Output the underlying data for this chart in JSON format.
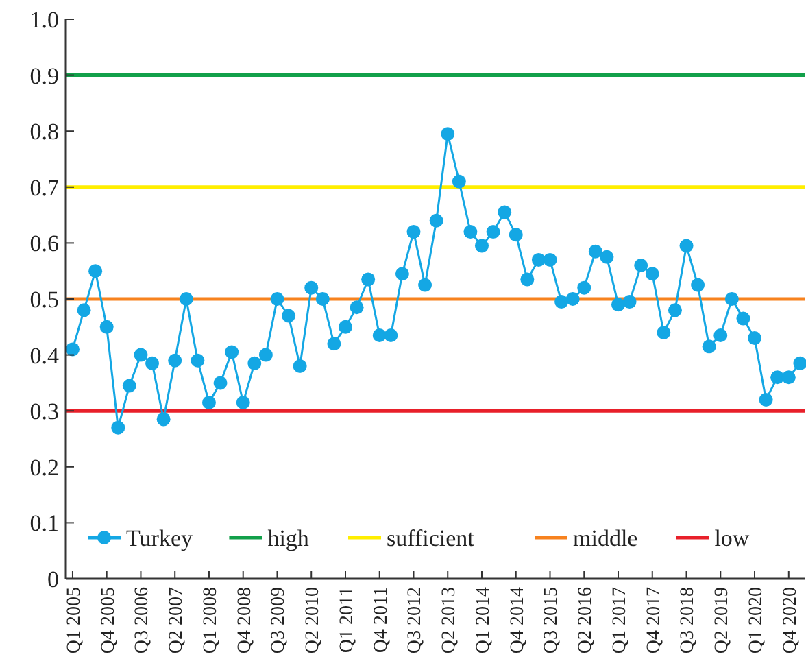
{
  "chart_data": {
    "type": "line",
    "categories": [
      "Q1 2005",
      null,
      null,
      "Q4 2005",
      null,
      null,
      "Q3 2006",
      null,
      null,
      "Q2 2007",
      null,
      null,
      "Q1 2008",
      null,
      null,
      "Q4 2008",
      null,
      null,
      "Q3 2009",
      null,
      null,
      "Q2 2010",
      null,
      null,
      "Q1 2011",
      null,
      null,
      "Q4 2011",
      null,
      null,
      "Q3 2012",
      null,
      null,
      "Q2 2013",
      null,
      null,
      "Q1 2014",
      null,
      null,
      "Q4 2014",
      null,
      null,
      "Q3 2015",
      null,
      null,
      "Q2 2016",
      null,
      null,
      "Q1 2017",
      null,
      null,
      "Q4 2017",
      null,
      null,
      "Q3 2018",
      null,
      null,
      "Q2 2019",
      null,
      null,
      "Q1 2020",
      null,
      null,
      "Q4 2020",
      null
    ],
    "series": [
      {
        "name": "Turkey",
        "color": "#14a7e4",
        "values": [
          0.41,
          0.48,
          0.55,
          0.45,
          0.27,
          0.345,
          0.4,
          0.385,
          0.285,
          0.39,
          0.5,
          0.39,
          0.315,
          0.35,
          0.405,
          0.315,
          0.385,
          0.4,
          0.5,
          0.47,
          0.38,
          0.52,
          0.5,
          0.42,
          0.45,
          0.485,
          0.535,
          0.435,
          0.435,
          0.545,
          0.62,
          0.525,
          0.64,
          0.795,
          0.71,
          0.62,
          0.595,
          0.62,
          0.655,
          0.615,
          0.535,
          0.57,
          0.57,
          0.495,
          0.5,
          0.52,
          0.585,
          0.575,
          0.49,
          0.495,
          0.56,
          0.545,
          0.44,
          0.48,
          0.595,
          0.525,
          0.415,
          0.435,
          0.5,
          0.465,
          0.43,
          0.32,
          0.36,
          0.36,
          0.385
        ]
      }
    ],
    "ref_lines": [
      {
        "axis": "y",
        "value": 0.9,
        "label": "high",
        "color": "#12a04a"
      },
      {
        "axis": "y",
        "value": 0.7,
        "label": "sufficient",
        "color": "#ffee00"
      },
      {
        "axis": "y",
        "value": 0.5,
        "label": "middle",
        "color": "#f7821e"
      },
      {
        "axis": "y",
        "value": 0.3,
        "label": "low",
        "color": "#e8202a"
      }
    ],
    "ylim": [
      0,
      1
    ],
    "yticks": [
      0,
      0.1,
      0.2,
      0.3,
      0.4,
      0.5,
      0.6,
      0.7,
      0.8,
      0.9,
      {
        "value": 1,
        "label": "1.0"
      }
    ],
    "marker": "circle",
    "line_style": "solid",
    "legend": "bottom",
    "grid": false
  }
}
